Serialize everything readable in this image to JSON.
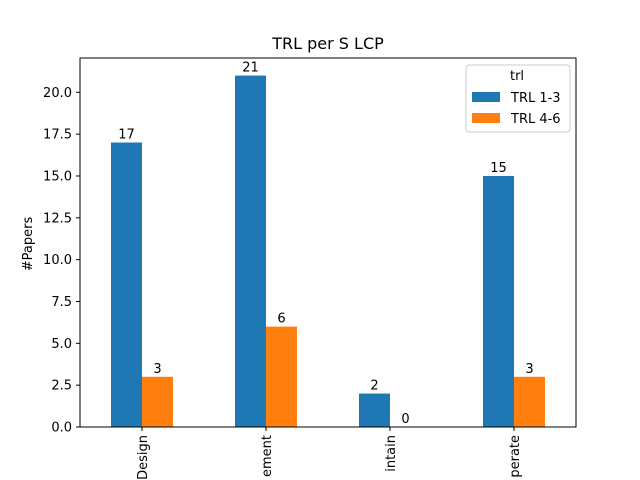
{
  "chart_data": {
    "type": "bar",
    "title": "TRL per S LCP",
    "xlabel": "",
    "ylabel": "#Papers",
    "categories": [
      "Design",
      "Implement",
      "Maintain",
      "Operate"
    ],
    "category_tick_text": [
      "Design",
      "ement",
      "intain",
      "perate"
    ],
    "series": [
      {
        "name": "TRL 1-3",
        "color": "#1f77b4",
        "values": [
          17,
          21,
          2,
          15
        ]
      },
      {
        "name": "TRL 4-6",
        "color": "#ff7f0e",
        "values": [
          3,
          6,
          0,
          3
        ]
      }
    ],
    "ylim": [
      0,
      22.05
    ],
    "yticks": [
      0.0,
      2.5,
      5.0,
      7.5,
      10.0,
      12.5,
      15.0,
      17.5,
      20.0
    ],
    "ytick_labels": [
      "0.0",
      "2.5",
      "5.0",
      "7.5",
      "10.0",
      "12.5",
      "15.0",
      "17.5",
      "20.0"
    ],
    "legend": {
      "title": "trl",
      "placement": "top-right"
    },
    "grid": false
  }
}
